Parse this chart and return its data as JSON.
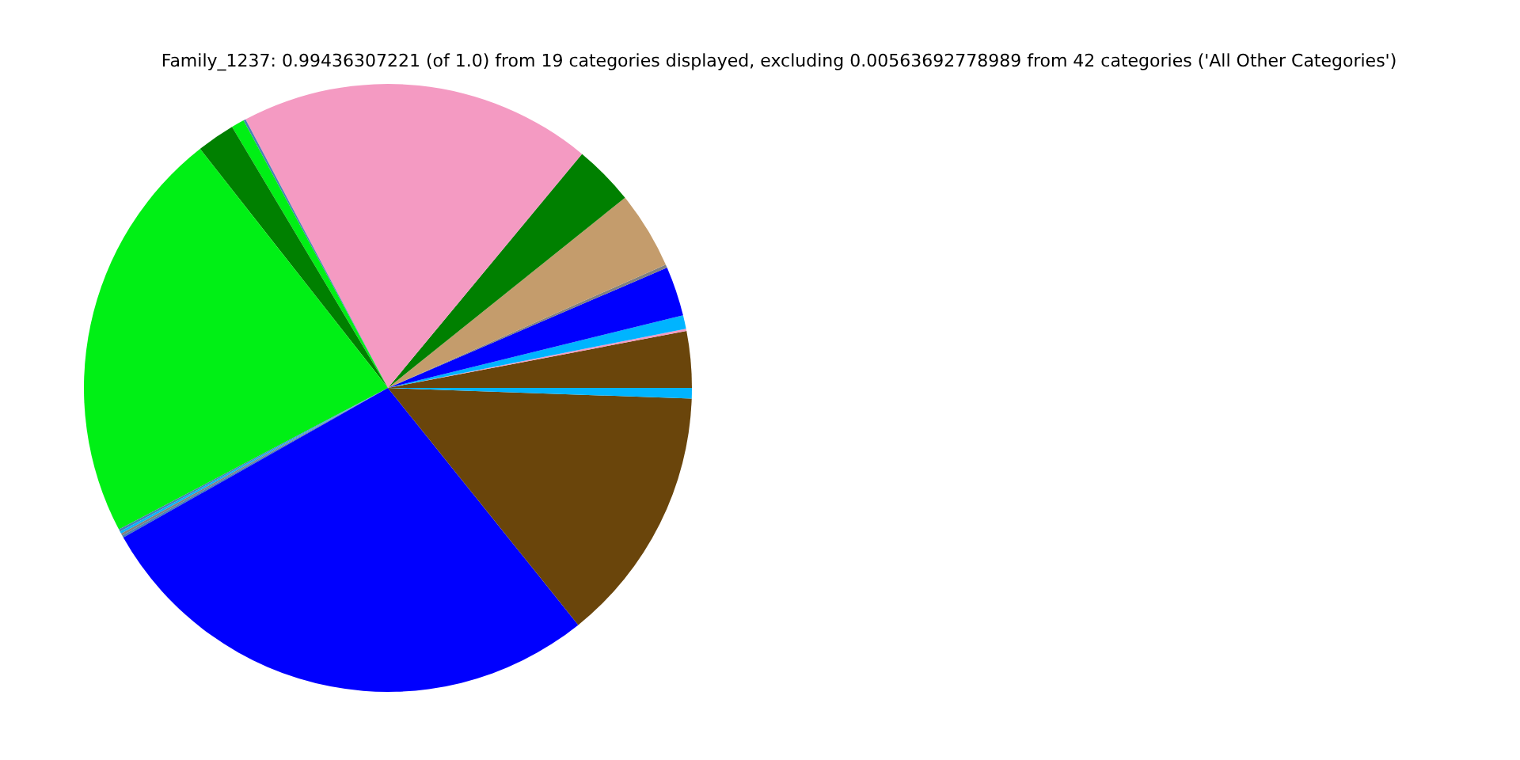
{
  "chart_data": {
    "type": "pie",
    "title": "Family_1237: 0.99436307221 (of 1.0) from 19 categories displayed, excluding 0.00563692778989 from 42 categories ('All Other Categories')",
    "categories": [
      null,
      null,
      null,
      null,
      null,
      null,
      null,
      null,
      null,
      null,
      null,
      null,
      null,
      null,
      null,
      null,
      null,
      null,
      null
    ],
    "values": [
      3.0,
      0.12,
      0.72,
      2.64,
      0.17,
      4.11,
      3.22,
      18.78,
      0.12,
      0.69,
      2.03,
      22.11,
      0.12,
      0.12,
      0.12,
      0.12,
      27.58,
      13.67,
      0.56
    ],
    "colors": [
      "#6a450b",
      "#f49ac2",
      "#00b4ff",
      "#0000ff",
      "#808080",
      "#c49c6c",
      "#008000",
      "#f49ac2",
      "#4682b4",
      "#00f015",
      "#008000",
      "#00f015",
      "#4682b4",
      "#00b4ff",
      "#808080",
      "#4682b4",
      "#0000ff",
      "#6a450b",
      "#00b4ff"
    ]
  }
}
